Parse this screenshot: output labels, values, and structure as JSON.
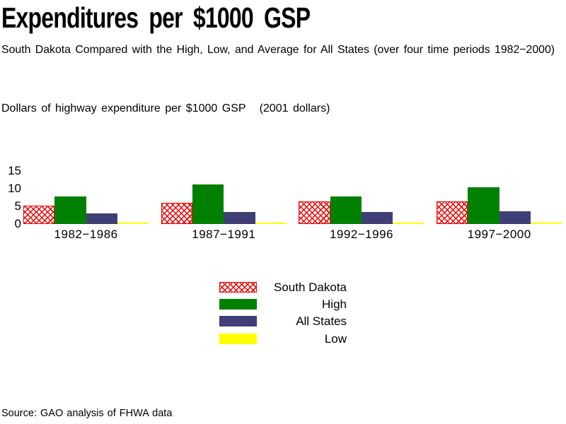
{
  "chart_data": {
    "type": "bar",
    "title": "Expenditures per $1000 GSP",
    "subtitle": "South Dakota Compared with the High, Low, and Average for All States (over four time periods 1982−2000)",
    "axis_note": "Dollars of highway expenditure per $1000 GSP   (2001 dollars)",
    "categories": [
      "1982−1986",
      "1987−1991",
      "1992−1996",
      "1997−2000"
    ],
    "series": [
      {
        "name": "South Dakota",
        "style": "crosshatch",
        "color": "#ee0000",
        "values": [
          5.3,
          6.0,
          6.4,
          6.4
        ]
      },
      {
        "name": "High",
        "style": "solid",
        "color": "#008000",
        "values": [
          7.9,
          11.3,
          7.9,
          10.4
        ]
      },
      {
        "name": "All States",
        "style": "solid",
        "color": "#3f3f76",
        "values": [
          3.0,
          3.5,
          3.5,
          3.6
        ]
      },
      {
        "name": "Low",
        "style": "solid",
        "color": "#ffff00",
        "values": [
          0.3,
          0.4,
          0.4,
          0.4
        ]
      }
    ],
    "yticks": [
      0,
      5,
      10,
      15
    ],
    "ylim": [
      0,
      15
    ],
    "grid": false,
    "legend_position": "below-center"
  },
  "source": "Source: GAO analysis of FHWA data"
}
